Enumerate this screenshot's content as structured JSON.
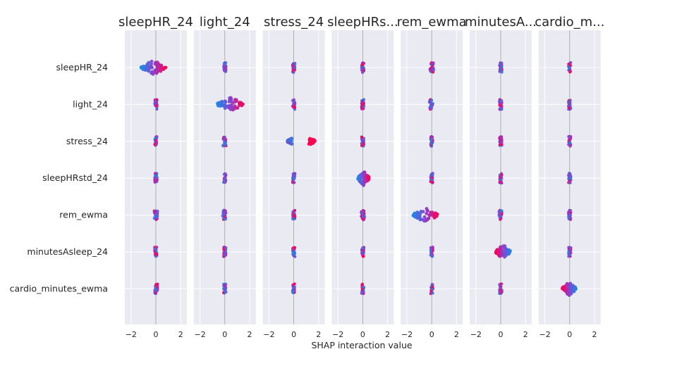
{
  "chart_data": {
    "type": "scatter",
    "title": "",
    "xlabel": "SHAP interaction value",
    "xlim": [
      -2.5,
      2.5
    ],
    "xticks": [
      -2,
      0,
      2
    ],
    "xtick_labels": [
      "−2",
      "0",
      "2"
    ],
    "grid": true,
    "legend": "none",
    "colors": {
      "low": "#1e88e5",
      "mid": "#8a3fd0",
      "high": "#ff0052",
      "panel_bg": "#eaeaf2",
      "zero_line": "#999999"
    },
    "rows": [
      "sleepHR_24",
      "light_24",
      "stress_24",
      "sleepHRstd_24",
      "rem_ewma",
      "minutesAsleep_24",
      "cardio_minutes_ewma"
    ],
    "panels": [
      {
        "title": "sleepHR_24",
        "ranges": [
          [
            -1.2,
            0.8
          ],
          [
            -0.1,
            0.1
          ],
          [
            -0.1,
            0.1
          ],
          [
            -0.1,
            0.1
          ],
          [
            -0.15,
            0.15
          ],
          [
            -0.1,
            0.1
          ],
          [
            -0.15,
            0.15
          ]
        ]
      },
      {
        "title": "light_24",
        "ranges": [
          [
            -0.1,
            0.1
          ],
          [
            -0.6,
            1.5
          ],
          [
            -0.15,
            0.1
          ],
          [
            -0.1,
            0.1
          ],
          [
            -0.2,
            0.1
          ],
          [
            -0.1,
            0.1
          ],
          [
            -0.1,
            0.1
          ]
        ]
      },
      {
        "title": "stress_24",
        "ranges": [
          [
            -0.1,
            0.1
          ],
          [
            -0.1,
            0.1
          ],
          [
            -0.5,
            1.7
          ],
          [
            -0.1,
            0.1
          ],
          [
            -0.1,
            0.1
          ],
          [
            -0.1,
            0.1
          ],
          [
            -0.1,
            0.1
          ]
        ]
      },
      {
        "title": "sleepHRs...",
        "ranges": [
          [
            -0.1,
            0.1
          ],
          [
            -0.1,
            0.1
          ],
          [
            -0.1,
            0.1
          ],
          [
            -0.4,
            0.5
          ],
          [
            -0.15,
            0.15
          ],
          [
            -0.1,
            0.1
          ],
          [
            -0.1,
            0.1
          ]
        ]
      },
      {
        "title": "rem_ewma",
        "ranges": [
          [
            -0.15,
            0.15
          ],
          [
            -0.2,
            0.1
          ],
          [
            -0.1,
            0.1
          ],
          [
            -0.1,
            0.1
          ],
          [
            -1.5,
            0.5
          ],
          [
            -0.1,
            0.1
          ],
          [
            -0.1,
            0.1
          ]
        ]
      },
      {
        "title": "minutesA...",
        "ranges": [
          [
            -0.1,
            0.1
          ],
          [
            -0.1,
            0.1
          ],
          [
            -0.1,
            0.1
          ],
          [
            -0.1,
            0.1
          ],
          [
            -0.15,
            0.1
          ],
          [
            -0.4,
            0.8
          ],
          [
            -0.1,
            0.1
          ]
        ]
      },
      {
        "title": "cardio_m...",
        "ranges": [
          [
            -0.1,
            0.1
          ],
          [
            -0.1,
            0.1
          ],
          [
            -0.1,
            0.1
          ],
          [
            -0.1,
            0.1
          ],
          [
            -0.1,
            0.1
          ],
          [
            -0.1,
            0.1
          ],
          [
            -0.6,
            0.5
          ]
        ]
      }
    ]
  }
}
